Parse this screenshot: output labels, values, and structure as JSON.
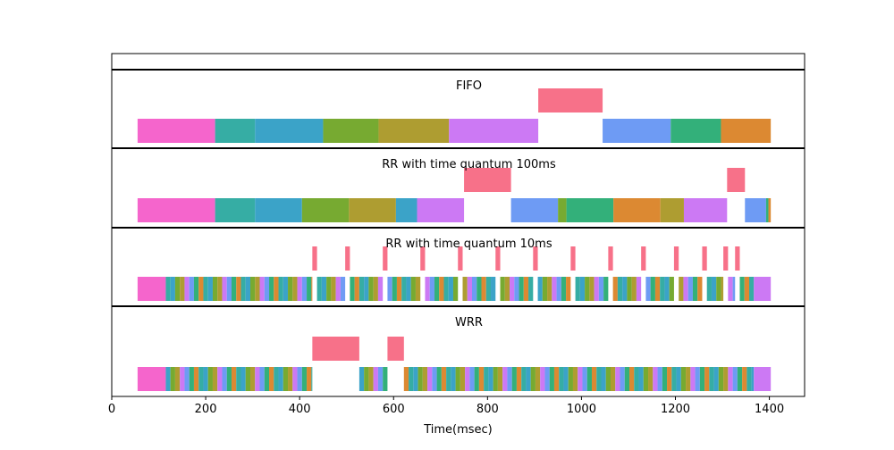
{
  "chart_data": {
    "type": "bar",
    "xlabel": "Time(msec)",
    "xlim": [
      0,
      1475
    ],
    "x_ticks": [
      0,
      200,
      400,
      600,
      800,
      1000,
      1200,
      1400
    ],
    "palette": {
      "pink": "#f565cc",
      "teal": "#36ada4",
      "blue": "#3ba3c8",
      "green": "#77aa31",
      "olive": "#ae9d31",
      "violet": "#cc79f4",
      "red": "#f77189",
      "periwinkle": "#6e9bf4",
      "emerald": "#33b07a",
      "orange": "#dc8932"
    },
    "panels": [
      {
        "title": "",
        "segments": []
      },
      {
        "title": "FIFO",
        "segments": [
          {
            "start": 55,
            "end": 220,
            "row": 0,
            "color": "pink"
          },
          {
            "start": 220,
            "end": 305,
            "row": 0,
            "color": "teal"
          },
          {
            "start": 305,
            "end": 450,
            "row": 0,
            "color": "blue"
          },
          {
            "start": 450,
            "end": 568,
            "row": 0,
            "color": "green"
          },
          {
            "start": 568,
            "end": 718,
            "row": 0,
            "color": "olive"
          },
          {
            "start": 718,
            "end": 908,
            "row": 0,
            "color": "violet"
          },
          {
            "start": 908,
            "end": 1045,
            "row": 1,
            "color": "red"
          },
          {
            "start": 1045,
            "end": 1190,
            "row": 0,
            "color": "periwinkle"
          },
          {
            "start": 1190,
            "end": 1297,
            "row": 0,
            "color": "emerald"
          },
          {
            "start": 1297,
            "end": 1403,
            "row": 0,
            "color": "orange"
          }
        ]
      },
      {
        "title": "RR with time quantum 100ms",
        "segments": [
          {
            "start": 55,
            "end": 220,
            "row": 0,
            "color": "pink"
          },
          {
            "start": 220,
            "end": 305,
            "row": 0,
            "color": "teal"
          },
          {
            "start": 305,
            "end": 405,
            "row": 0,
            "color": "blue"
          },
          {
            "start": 405,
            "end": 505,
            "row": 0,
            "color": "green"
          },
          {
            "start": 505,
            "end": 605,
            "row": 0,
            "color": "olive"
          },
          {
            "start": 605,
            "end": 650,
            "row": 0,
            "color": "blue"
          },
          {
            "start": 650,
            "end": 750,
            "row": 0,
            "color": "violet"
          },
          {
            "start": 750,
            "end": 850,
            "row": 1,
            "color": "red"
          },
          {
            "start": 850,
            "end": 950,
            "row": 0,
            "color": "periwinkle"
          },
          {
            "start": 950,
            "end": 968,
            "row": 0,
            "color": "green"
          },
          {
            "start": 968,
            "end": 1068,
            "row": 0,
            "color": "emerald"
          },
          {
            "start": 1068,
            "end": 1168,
            "row": 0,
            "color": "orange"
          },
          {
            "start": 1168,
            "end": 1218,
            "row": 0,
            "color": "olive"
          },
          {
            "start": 1218,
            "end": 1310,
            "row": 0,
            "color": "violet"
          },
          {
            "start": 1310,
            "end": 1348,
            "row": 1,
            "color": "red"
          },
          {
            "start": 1348,
            "end": 1393,
            "row": 0,
            "color": "periwinkle"
          },
          {
            "start": 1393,
            "end": 1398,
            "row": 0,
            "color": "emerald"
          },
          {
            "start": 1398,
            "end": 1403,
            "row": 0,
            "color": "orange"
          }
        ]
      },
      {
        "title": "RR with time quantum 10ms",
        "segments": [
          {
            "start": 55,
            "end": 115,
            "row": 0,
            "color": "pink"
          },
          {
            "start": 115,
            "end": 427,
            "row": 0,
            "color": "mixed"
          },
          {
            "start": 427,
            "end": 437,
            "row": 1,
            "color": "red"
          },
          {
            "start": 437,
            "end": 497,
            "row": 0,
            "color": "mixed"
          },
          {
            "start": 497,
            "end": 507,
            "row": 1,
            "color": "red"
          },
          {
            "start": 507,
            "end": 577,
            "row": 0,
            "color": "mixed"
          },
          {
            "start": 577,
            "end": 587,
            "row": 1,
            "color": "red"
          },
          {
            "start": 587,
            "end": 657,
            "row": 0,
            "color": "mixed"
          },
          {
            "start": 657,
            "end": 667,
            "row": 1,
            "color": "red"
          },
          {
            "start": 667,
            "end": 737,
            "row": 0,
            "color": "mixed"
          },
          {
            "start": 737,
            "end": 747,
            "row": 1,
            "color": "red"
          },
          {
            "start": 747,
            "end": 817,
            "row": 0,
            "color": "mixed"
          },
          {
            "start": 817,
            "end": 827,
            "row": 1,
            "color": "red"
          },
          {
            "start": 827,
            "end": 897,
            "row": 0,
            "color": "mixed"
          },
          {
            "start": 897,
            "end": 907,
            "row": 1,
            "color": "red"
          },
          {
            "start": 907,
            "end": 977,
            "row": 0,
            "color": "mixed"
          },
          {
            "start": 977,
            "end": 987,
            "row": 1,
            "color": "red"
          },
          {
            "start": 987,
            "end": 1057,
            "row": 0,
            "color": "mixed"
          },
          {
            "start": 1057,
            "end": 1067,
            "row": 1,
            "color": "red"
          },
          {
            "start": 1067,
            "end": 1127,
            "row": 0,
            "color": "mixed"
          },
          {
            "start": 1127,
            "end": 1137,
            "row": 1,
            "color": "red"
          },
          {
            "start": 1137,
            "end": 1197,
            "row": 0,
            "color": "mixed"
          },
          {
            "start": 1197,
            "end": 1207,
            "row": 1,
            "color": "red"
          },
          {
            "start": 1207,
            "end": 1257,
            "row": 0,
            "color": "mixed"
          },
          {
            "start": 1257,
            "end": 1267,
            "row": 1,
            "color": "red"
          },
          {
            "start": 1267,
            "end": 1302,
            "row": 0,
            "color": "mixed"
          },
          {
            "start": 1302,
            "end": 1312,
            "row": 1,
            "color": "red"
          },
          {
            "start": 1312,
            "end": 1327,
            "row": 0,
            "color": "mixed"
          },
          {
            "start": 1327,
            "end": 1337,
            "row": 1,
            "color": "red"
          },
          {
            "start": 1337,
            "end": 1367,
            "row": 0,
            "color": "mixed"
          },
          {
            "start": 1367,
            "end": 1403,
            "row": 0,
            "color": "violet"
          }
        ]
      },
      {
        "title": "WRR",
        "segments": [
          {
            "start": 55,
            "end": 115,
            "row": 0,
            "color": "pink"
          },
          {
            "start": 115,
            "end": 427,
            "row": 0,
            "color": "mixed"
          },
          {
            "start": 427,
            "end": 527,
            "row": 1,
            "color": "red"
          },
          {
            "start": 527,
            "end": 587,
            "row": 0,
            "color": "mixed"
          },
          {
            "start": 587,
            "end": 622,
            "row": 1,
            "color": "red"
          },
          {
            "start": 622,
            "end": 1367,
            "row": 0,
            "color": "mixed"
          },
          {
            "start": 1367,
            "end": 1403,
            "row": 0,
            "color": "violet"
          }
        ]
      }
    ]
  }
}
